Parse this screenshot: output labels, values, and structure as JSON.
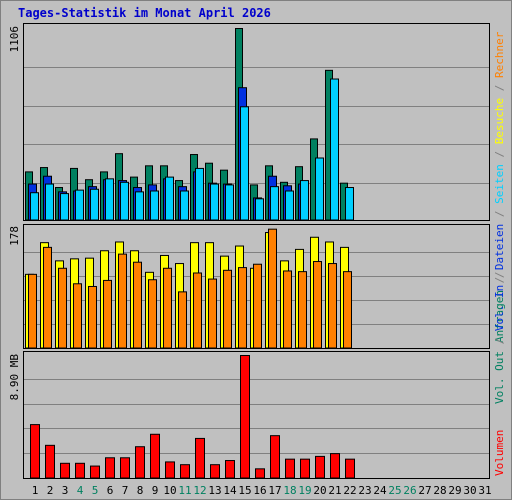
{
  "title": "Tages-Statistik im Monat April 2026",
  "colors": {
    "background": "#c0c0c0",
    "title": "#0000cc",
    "frame": "#808080",
    "grid": "#808080",
    "bar_outline": "#000000",
    "anfragen": "#008060",
    "dateien": "#0030e0",
    "seiten": "#00d0ff",
    "besuche": "#ffff00",
    "rechner": "#ff8000",
    "volumen": "#ff0000",
    "day_normal": "#000000",
    "day_weekend": "#008060"
  },
  "chart_data": [
    {
      "type": "bar",
      "panel": "top",
      "ymax": 1106,
      "ymax_label": "1106",
      "categories": [
        1,
        2,
        3,
        4,
        5,
        6,
        7,
        8,
        9,
        10,
        11,
        12,
        13,
        14,
        15,
        16,
        17,
        18,
        19,
        20,
        21,
        22,
        23,
        24,
        25,
        26,
        27,
        28,
        29,
        30,
        31
      ],
      "series": [
        {
          "name": "Anfragen",
          "color_key": "anfragen",
          "values": [
            280,
            305,
            190,
            300,
            235,
            280,
            385,
            250,
            315,
            315,
            230,
            380,
            330,
            290,
            1106,
            205,
            315,
            220,
            310,
            470,
            865,
            215,
            null,
            null,
            null,
            null,
            null,
            null,
            null,
            null,
            null
          ]
        },
        {
          "name": "Dateien",
          "color_key": "dateien",
          "values": [
            210,
            255,
            165,
            170,
            195,
            235,
            230,
            190,
            205,
            240,
            195,
            280,
            215,
            210,
            765,
            130,
            255,
            200,
            210,
            0,
            0,
            0,
            null,
            null,
            null,
            null,
            null,
            null,
            null,
            null,
            null
          ]
        },
        {
          "name": "Seiten",
          "color_key": "seiten",
          "values": [
            160,
            210,
            155,
            175,
            180,
            240,
            220,
            165,
            170,
            250,
            170,
            300,
            210,
            205,
            655,
            125,
            195,
            170,
            230,
            360,
            815,
            190,
            null,
            null,
            null,
            null,
            null,
            null,
            null,
            null,
            null
          ]
        }
      ]
    },
    {
      "type": "bar",
      "panel": "middle",
      "ymax": 178,
      "ymax_label": "178",
      "categories": [
        1,
        2,
        3,
        4,
        5,
        6,
        7,
        8,
        9,
        10,
        11,
        12,
        13,
        14,
        15,
        16,
        17,
        18,
        19,
        20,
        21,
        22,
        23,
        24,
        25,
        26,
        27,
        28,
        29,
        30,
        31
      ],
      "series": [
        {
          "name": "Besuche",
          "color_key": "besuche",
          "values": [
            110,
            157,
            130,
            133,
            134,
            145,
            158,
            145,
            113,
            138,
            126,
            157,
            157,
            137,
            152,
            119,
            172,
            130,
            147,
            165,
            158,
            150,
            null,
            null,
            null,
            null,
            null,
            null,
            null,
            null,
            null
          ]
        },
        {
          "name": "Rechner",
          "color_key": "rechner",
          "values": [
            110,
            150,
            119,
            96,
            92,
            101,
            140,
            128,
            102,
            119,
            84,
            112,
            103,
            116,
            120,
            125,
            177,
            115,
            114,
            129,
            126,
            114,
            null,
            null,
            null,
            null,
            null,
            null,
            null,
            null,
            null
          ]
        }
      ]
    },
    {
      "type": "bar",
      "panel": "bottom",
      "ymax": 8.9,
      "ymax_label": "8.90 MB",
      "categories": [
        1,
        2,
        3,
        4,
        5,
        6,
        7,
        8,
        9,
        10,
        11,
        12,
        13,
        14,
        15,
        16,
        17,
        18,
        19,
        20,
        21,
        22,
        23,
        24,
        25,
        26,
        27,
        28,
        29,
        30,
        31
      ],
      "series": [
        {
          "name": "Volumen",
          "color_key": "volumen",
          "values": [
            3.9,
            2.4,
            1.1,
            1.1,
            0.9,
            1.5,
            1.5,
            2.3,
            3.2,
            1.2,
            1.0,
            2.9,
            1.0,
            1.3,
            8.9,
            0.7,
            3.1,
            1.4,
            1.4,
            1.6,
            1.8,
            1.4,
            null,
            null,
            null,
            null,
            null,
            null,
            null,
            null,
            null
          ]
        }
      ]
    }
  ],
  "weekend_days": [
    4,
    5,
    11,
    12,
    18,
    19,
    25,
    26
  ],
  "right_legend": {
    "top": [
      {
        "text": "Anfragen",
        "color_key": "anfragen"
      },
      {
        "text": " / ",
        "color_key": "frame"
      },
      {
        "text": "Dateien",
        "color_key": "dateien"
      },
      {
        "text": " / ",
        "color_key": "frame"
      },
      {
        "text": "Seiten",
        "color_key": "seiten"
      },
      {
        "text": " / ",
        "color_key": "frame"
      },
      {
        "text": "Besuche",
        "color_key": "besuche"
      },
      {
        "text": " / ",
        "color_key": "frame"
      },
      {
        "text": "Rechner",
        "color_key": "rechner"
      }
    ],
    "middle": [
      {
        "text": "Vol. Out",
        "color_key": "anfragen"
      },
      {
        "text": " / ",
        "color_key": "frame"
      },
      {
        "text": "Vol. In",
        "color_key": "dateien"
      },
      {
        "text": " / ",
        "color_key": "frame"
      }
    ],
    "bottom": [
      {
        "text": "Volumen",
        "color_key": "volumen"
      }
    ]
  }
}
